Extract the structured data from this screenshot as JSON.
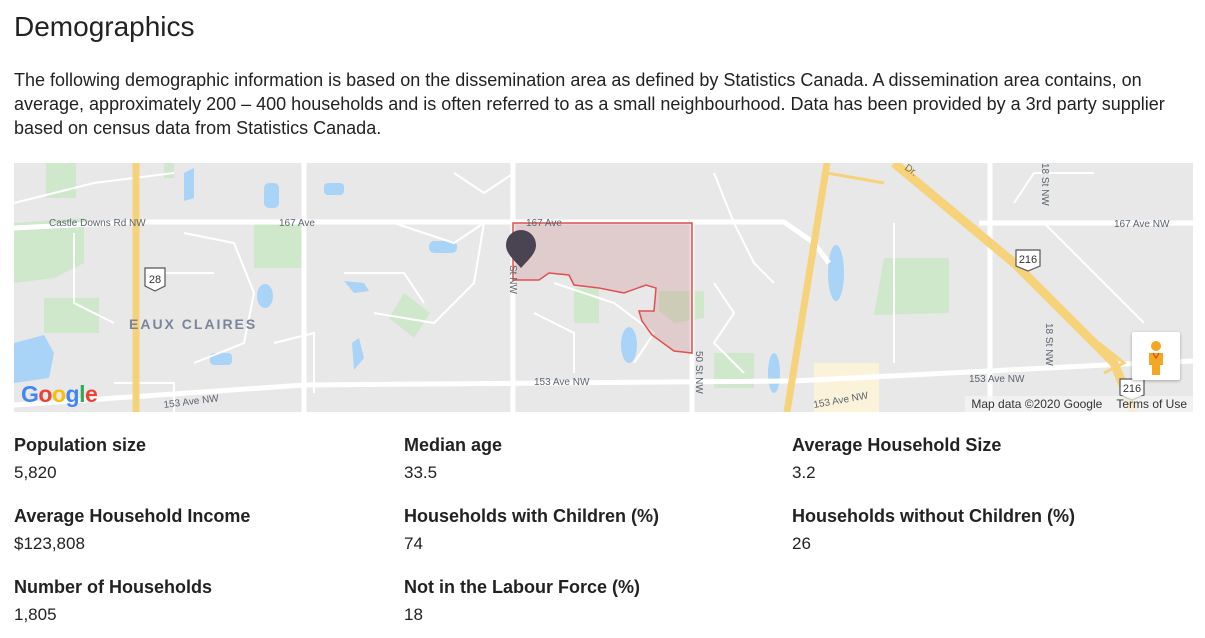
{
  "title": "Demographics",
  "intro": "The following demographic information is based on the dissemination area as defined by Statistics Canada. A dissemination area contains, on average, approximately 200 – 400 households and is often referred to as a small neighbourhood. Data has been provided by a 3rd party supplier based on census data from Statistics Canada.",
  "map": {
    "labels": {
      "castle_downs": "Castle Downs Rd NW",
      "ave167_a": "167 Ave",
      "ave167_b": "167 Ave",
      "ave167_nw": "167 Ave NW",
      "hwy28": "28",
      "hwy216_a": "216",
      "hwy216_b": "216",
      "eaux_claires": "EAUX CLAIRES",
      "ave153_a": "153 Ave NW",
      "ave153_b": "153 Ave NW",
      "ave153_c": "153 Ave NW",
      "st50": "50 St NW",
      "st18_a": "18 St NW",
      "st18_b": "18 St NW",
      "st_nw": "St NW",
      "dr": "Dr."
    },
    "google_logo": "Google",
    "attribution": "Map data ©2020 Google",
    "terms": "Terms of Use",
    "highlight_color": "#e05050",
    "pin_color": "#4a4452"
  },
  "stats": [
    {
      "label": "Population size",
      "value": "5,820"
    },
    {
      "label": "Median age",
      "value": "33.5"
    },
    {
      "label": "Average Household Size",
      "value": "3.2"
    },
    {
      "label": "Average Household Income",
      "value": "$123,808"
    },
    {
      "label": "Households with Children (%)",
      "value": "74"
    },
    {
      "label": "Households without Children (%)",
      "value": "26"
    },
    {
      "label": "Number of Households",
      "value": "1,805"
    },
    {
      "label": "Not in the Labour Force (%)",
      "value": "18"
    }
  ]
}
